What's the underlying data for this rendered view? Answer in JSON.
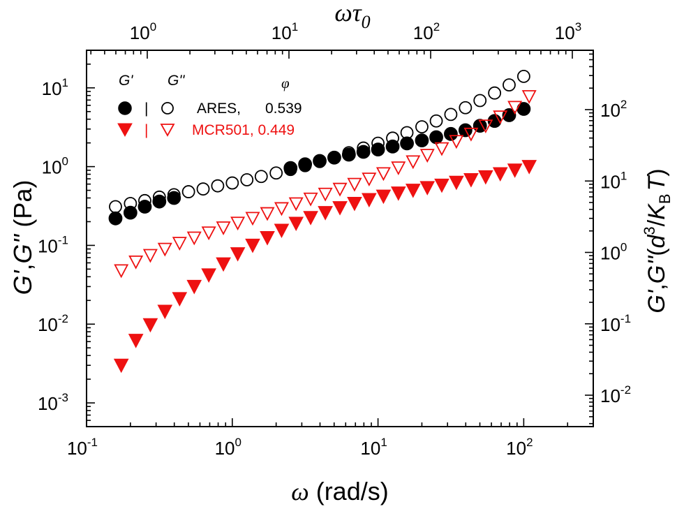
{
  "chart_data": {
    "type": "scatter",
    "x_scale": "log",
    "y_scale": "log",
    "xlim": [
      0.1,
      300
    ],
    "ylim": [
      0.0005,
      30
    ],
    "x_ticks": [
      0.1,
      1,
      10,
      100
    ],
    "y_ticks": [
      0.001,
      0.01,
      0.1,
      1,
      10
    ],
    "top_ticks": [
      1,
      10,
      100,
      1000
    ],
    "right_ticks": [
      0.01,
      0.1,
      1,
      10,
      100
    ],
    "x_tick_labels": [
      {
        "base": "10",
        "exp": "-1"
      },
      {
        "base": "10",
        "exp": "0"
      },
      {
        "base": "10",
        "exp": "1"
      },
      {
        "base": "10",
        "exp": "2"
      }
    ],
    "y_tick_labels": [
      {
        "base": "10",
        "exp": "-3"
      },
      {
        "base": "10",
        "exp": "-2"
      },
      {
        "base": "10",
        "exp": "-1"
      },
      {
        "base": "10",
        "exp": "0"
      },
      {
        "base": "10",
        "exp": "1"
      }
    ],
    "top_tick_labels": [
      {
        "base": "10",
        "exp": "0"
      },
      {
        "base": "10",
        "exp": "1"
      },
      {
        "base": "10",
        "exp": "2"
      },
      {
        "base": "10",
        "exp": "3"
      }
    ],
    "right_tick_labels": [
      {
        "base": "10",
        "exp": "-2"
      },
      {
        "base": "10",
        "exp": "-1"
      },
      {
        "base": "10",
        "exp": "0"
      },
      {
        "base": "10",
        "exp": "1"
      },
      {
        "base": "10",
        "exp": "2"
      }
    ],
    "xlabel": {
      "sym": "ω",
      "rest": " (rad/s)"
    },
    "ylabel": {
      "g1": "G'",
      "sep": ",",
      "g2": "G''",
      "rest": " (Pa)"
    },
    "top_label": {
      "sym": "ωτ",
      "sub": "0"
    },
    "right_label": {
      "g1": "G'",
      "sep": ",",
      "g2": "G''",
      "open": "(",
      "d": "d",
      "d_exp": "3",
      "slash": "/",
      "k": "K",
      "k_sub": "B",
      "t": "T",
      "close": ")"
    },
    "legend": {
      "header_g1": "G'",
      "header_g2": "G''",
      "header_phi": "φ",
      "separator": "|",
      "entries": [
        {
          "name": "ARES,",
          "phi": "0.539",
          "color": "#000000"
        },
        {
          "name": "MCR501, 0.449",
          "phi": "",
          "color": "#ee1111"
        }
      ]
    },
    "grid": false,
    "series": [
      {
        "label": "G' ARES",
        "marker": "circle",
        "filled": true,
        "color": "#000000",
        "x": [
          0.158,
          0.2,
          0.251,
          0.316,
          0.398,
          2.51,
          3.16,
          3.98,
          5.01,
          6.31,
          7.94,
          10,
          12.6,
          15.8,
          20,
          25.1,
          31.6,
          39.8,
          50.1,
          63.1,
          79.4,
          100
        ],
        "y": [
          0.22,
          0.26,
          0.31,
          0.36,
          0.4,
          0.96,
          1.07,
          1.18,
          1.3,
          1.42,
          1.54,
          1.65,
          1.8,
          1.97,
          2.15,
          2.36,
          2.6,
          2.9,
          3.3,
          3.8,
          4.5,
          5.4
        ]
      },
      {
        "label": "G'' ARES",
        "marker": "circle",
        "filled": false,
        "color": "#000000",
        "x": [
          0.158,
          0.2,
          0.251,
          0.316,
          0.398,
          0.501,
          0.631,
          0.794,
          1,
          1.26,
          1.58,
          2,
          2.51,
          3.16,
          3.98,
          5.01,
          6.31,
          7.94,
          10,
          12.6,
          15.8,
          20,
          25.1,
          31.6,
          39.8,
          50.1,
          63.1,
          79.4,
          100
        ],
        "y": [
          0.31,
          0.34,
          0.37,
          0.41,
          0.44,
          0.48,
          0.52,
          0.57,
          0.62,
          0.68,
          0.75,
          0.83,
          0.92,
          1.03,
          1.16,
          1.31,
          1.5,
          1.72,
          1.98,
          2.3,
          2.7,
          3.2,
          3.8,
          4.6,
          5.6,
          6.9,
          8.6,
          10.9,
          14.0
        ]
      },
      {
        "label": "G' MCR501",
        "marker": "triangle-down",
        "filled": true,
        "color": "#ee1111",
        "x": [
          0.173,
          0.218,
          0.274,
          0.345,
          0.435,
          0.548,
          0.69,
          0.869,
          1.09,
          1.38,
          1.74,
          2.18,
          2.74,
          3.45,
          4.35,
          5.48,
          6.9,
          8.69,
          10.9,
          13.8,
          17.4,
          21.8,
          27.4,
          34.5,
          43.5,
          54.8,
          69,
          86.9,
          109
        ],
        "y": [
          0.003,
          0.0062,
          0.0098,
          0.0145,
          0.021,
          0.03,
          0.042,
          0.058,
          0.078,
          0.1,
          0.125,
          0.155,
          0.19,
          0.225,
          0.26,
          0.3,
          0.34,
          0.38,
          0.42,
          0.46,
          0.5,
          0.54,
          0.58,
          0.63,
          0.68,
          0.74,
          0.81,
          0.9,
          1.0
        ]
      },
      {
        "label": "G'' MCR501",
        "marker": "triangle-down",
        "filled": false,
        "color": "#ee1111",
        "x": [
          0.173,
          0.218,
          0.274,
          0.345,
          0.435,
          0.548,
          0.69,
          0.869,
          1.09,
          1.38,
          1.74,
          2.18,
          2.74,
          3.45,
          4.35,
          5.48,
          6.9,
          8.69,
          10.9,
          13.8,
          17.4,
          21.8,
          27.4,
          34.5,
          43.5,
          54.8,
          69,
          86.9,
          109
        ],
        "y": [
          0.048,
          0.062,
          0.075,
          0.09,
          0.107,
          0.125,
          0.145,
          0.168,
          0.193,
          0.222,
          0.255,
          0.295,
          0.34,
          0.39,
          0.45,
          0.52,
          0.6,
          0.7,
          0.82,
          0.97,
          1.16,
          1.4,
          1.7,
          2.1,
          2.6,
          3.3,
          4.3,
          5.7,
          7.8
        ]
      }
    ]
  }
}
